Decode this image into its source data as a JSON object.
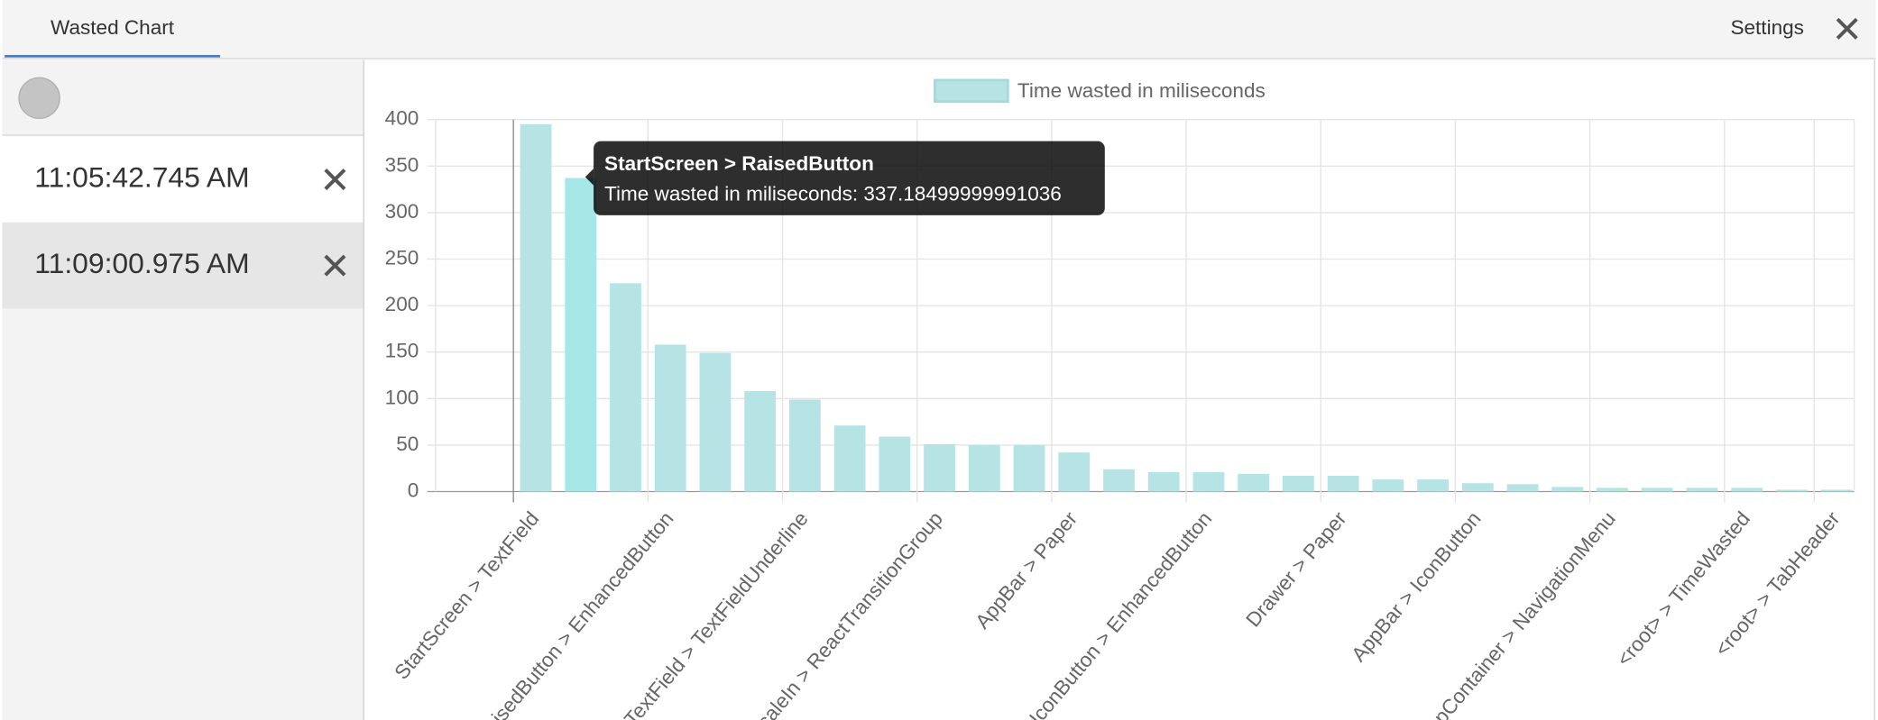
{
  "header": {
    "tab": "Wasted Chart",
    "settings": "Settings"
  },
  "sessions": [
    "11:05:42.745 AM",
    "11:09:00.975 AM"
  ],
  "chart_data": {
    "type": "bar",
    "categories": [
      "StartScreen > TextField",
      null,
      null,
      "RaisedButton > EnhancedButton",
      null,
      null,
      "TextField > TextFieldUnderline",
      null,
      null,
      "ScaleIn > ReactTransitionGroup",
      null,
      null,
      "AppBar > Paper",
      null,
      null,
      "IconButton > EnhancedButton",
      null,
      null,
      "Drawer > Paper",
      null,
      null,
      "AppBar > IconButton",
      null,
      null,
      "AppContainer > NavigationMenu",
      null,
      null,
      "<root> > TimeWasted",
      null,
      "<root> > TabHeader"
    ],
    "series": [
      {
        "name": "Time wasted in miliseconds",
        "color": "#b6e4e5",
        "values": [
          395,
          337.18499999991036,
          224,
          158,
          149,
          108,
          99,
          71,
          59,
          51,
          50,
          50,
          42,
          24,
          21,
          21,
          19,
          17,
          17,
          13,
          13,
          9,
          8,
          5,
          4,
          4,
          4,
          4,
          2,
          2
        ]
      }
    ],
    "ylim": [
      0,
      400
    ],
    "yticks": [
      0,
      50,
      100,
      150,
      200,
      250,
      300,
      350,
      400
    ],
    "grid": true,
    "legend": "top"
  },
  "tooltip": {
    "title": "StartScreen > RaisedButton",
    "label": "Time wasted in miliseconds: 337.18499999991036"
  }
}
